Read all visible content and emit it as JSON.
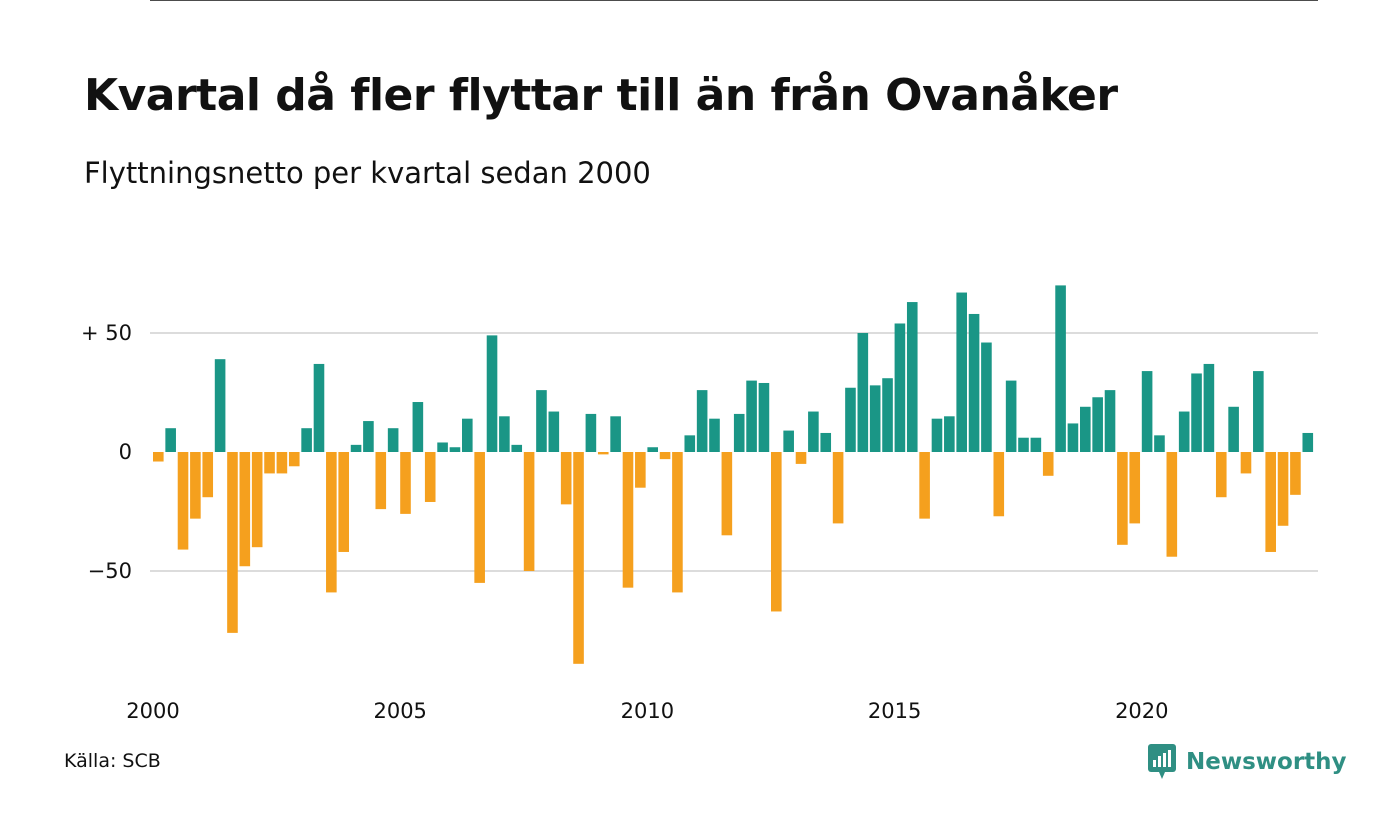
{
  "title": "Kvartal då fler flyttar till än från Ovanåker",
  "subtitle": "Flyttningsnetto per kvartal sedan 2000",
  "source": "Källa: SCB",
  "logo_text": "Newsworthy",
  "colors": {
    "positive": "#1a9686",
    "negative": "#f5a01e",
    "grid": "#dcdcdc",
    "logo": "#2f8f83"
  },
  "chart_data": {
    "type": "bar",
    "x_start": "2000 Q1",
    "interval": "quarter",
    "ylim": [
      -95,
      75
    ],
    "y_ticks": [
      {
        "value": 50,
        "label": "+ 50"
      },
      {
        "value": 0,
        "label": "0"
      },
      {
        "value": -50,
        "label": "−50"
      }
    ],
    "x_ticks": [
      "2000",
      "2005",
      "2010",
      "2015",
      "2020"
    ],
    "grid": true,
    "values": [
      -4,
      10,
      -41,
      -28,
      -19,
      39,
      -76,
      -48,
      -40,
      -9,
      -9,
      -6,
      10,
      37,
      -59,
      -42,
      3,
      13,
      -24,
      10,
      -26,
      21,
      -21,
      4,
      2,
      14,
      -55,
      49,
      15,
      3,
      -50,
      26,
      17,
      -22,
      -89,
      16,
      -1,
      15,
      -57,
      -15,
      2,
      -3,
      -59,
      7,
      26,
      14,
      -35,
      16,
      30,
      29,
      -67,
      9,
      -5,
      17,
      8,
      -30,
      27,
      50,
      28,
      31,
      54,
      63,
      -28,
      14,
      15,
      67,
      58,
      46,
      -27,
      30,
      6,
      6,
      -10,
      70,
      12,
      19,
      23,
      26,
      -39,
      -30,
      34,
      7,
      -44,
      17,
      33,
      37,
      -19,
      19,
      -9,
      34,
      -42,
      -31,
      -18,
      8
    ]
  }
}
